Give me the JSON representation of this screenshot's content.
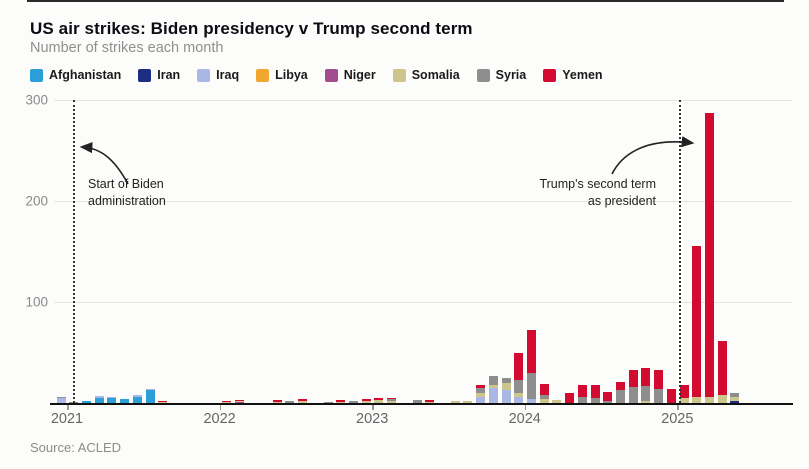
{
  "page": {
    "title": "US air strikes: Biden presidency v Trump second term",
    "subtitle": "Number of strikes each month",
    "source": "Source: ACLED"
  },
  "chart_data": {
    "type": "bar",
    "stacked": true,
    "title": "US air strikes: Biden presidency v Trump second term",
    "subtitle": "Number of strikes each month",
    "ylabel": "Number of strikes each month",
    "ylim": [
      0,
      300
    ],
    "yticks": [
      100,
      200,
      300
    ],
    "grid": "horizontal",
    "legend_position": "top",
    "x_year_ticks": [
      "2021",
      "2022",
      "2023",
      "2024",
      "2025"
    ],
    "months": [
      "2021-01",
      "2021-02",
      "2021-03",
      "2021-04",
      "2021-05",
      "2021-06",
      "2021-07",
      "2021-08",
      "2021-09",
      "2021-10",
      "2021-11",
      "2021-12",
      "2022-01",
      "2022-02",
      "2022-03",
      "2022-04",
      "2022-05",
      "2022-06",
      "2022-07",
      "2022-08",
      "2022-09",
      "2022-10",
      "2022-11",
      "2022-12",
      "2023-01",
      "2023-02",
      "2023-03",
      "2023-04",
      "2023-05",
      "2023-06",
      "2023-07",
      "2023-08",
      "2023-09",
      "2023-10",
      "2023-11",
      "2023-12",
      "2024-01",
      "2024-02",
      "2024-03",
      "2024-04",
      "2024-05",
      "2024-06",
      "2024-07",
      "2024-08",
      "2024-09",
      "2024-10",
      "2024-11",
      "2024-12",
      "2025-01",
      "2025-02",
      "2025-03",
      "2025-04",
      "2025-05",
      "2025-06"
    ],
    "series": [
      {
        "name": "Afghanistan",
        "color": "#2d9fd8",
        "values": [
          0,
          0,
          2,
          5,
          5,
          4,
          6,
          13,
          0,
          0,
          0,
          0,
          0,
          0,
          0,
          0,
          0,
          0,
          0,
          0,
          0,
          0,
          0,
          0,
          0,
          0,
          0,
          0,
          0,
          0,
          0,
          0,
          0,
          0,
          0,
          0,
          0,
          0,
          0,
          0,
          0,
          0,
          0,
          0,
          0,
          0,
          0,
          0,
          0,
          0,
          0,
          0,
          0,
          0
        ]
      },
      {
        "name": "Iran",
        "color": "#1c2e83",
        "values": [
          0,
          0,
          0,
          0,
          0,
          0,
          0,
          0,
          0,
          0,
          0,
          0,
          0,
          0,
          0,
          0,
          0,
          0,
          0,
          0,
          0,
          0,
          0,
          0,
          0,
          0,
          0,
          0,
          0,
          0,
          0,
          0,
          0,
          0,
          0,
          0,
          0,
          0,
          0,
          0,
          0,
          0,
          0,
          0,
          0,
          0,
          0,
          0,
          0,
          0,
          0,
          0,
          0,
          2
        ]
      },
      {
        "name": "Iraq",
        "color": "#aab7e4",
        "values": [
          5,
          0,
          0,
          2,
          1,
          0,
          2,
          1,
          0,
          0,
          0,
          0,
          0,
          0,
          0,
          0,
          0,
          0,
          0,
          0,
          0,
          0,
          0,
          0,
          0,
          0,
          0,
          0,
          0,
          0,
          0,
          0,
          0,
          6,
          15,
          13,
          6,
          4,
          0,
          0,
          0,
          0,
          0,
          0,
          0,
          0,
          0,
          0,
          0,
          0,
          0,
          0,
          0,
          0
        ]
      },
      {
        "name": "Libya",
        "color": "#efa72e",
        "values": [
          0,
          0,
          0,
          0,
          0,
          0,
          0,
          0,
          0,
          0,
          0,
          0,
          0,
          0,
          0,
          0,
          0,
          0,
          0,
          0,
          0,
          0,
          0,
          0,
          0,
          0,
          0,
          0,
          0,
          0,
          0,
          0,
          0,
          0,
          0,
          0,
          0,
          0,
          0,
          0,
          0,
          0,
          0,
          0,
          0,
          0,
          0,
          0,
          0,
          0,
          0,
          0,
          0,
          0
        ]
      },
      {
        "name": "Niger",
        "color": "#a14d8f",
        "values": [
          0,
          0,
          0,
          0,
          0,
          0,
          0,
          0,
          0,
          0,
          0,
          0,
          0,
          0,
          1,
          0,
          0,
          0,
          0,
          0,
          0,
          0,
          0,
          0,
          0,
          0,
          0,
          0,
          0,
          0,
          0,
          0,
          0,
          0,
          0,
          0,
          0,
          0,
          0,
          0,
          0,
          0,
          0,
          0,
          0,
          0,
          0,
          0,
          0,
          0,
          0,
          0,
          0,
          0
        ]
      },
      {
        "name": "Somalia",
        "color": "#cdc68c",
        "values": [
          0,
          0,
          0,
          0,
          0,
          0,
          0,
          0,
          1,
          0,
          0,
          0,
          0,
          1,
          1,
          0,
          0,
          1,
          0,
          2,
          0,
          0,
          1,
          0,
          2,
          3,
          2,
          0,
          0,
          1,
          0,
          2,
          2,
          4,
          3,
          7,
          4,
          0,
          4,
          3,
          0,
          0,
          0,
          0,
          0,
          0,
          2,
          0,
          0,
          5,
          6,
          6,
          8,
          4
        ]
      },
      {
        "name": "Syria",
        "color": "#8e8e8e",
        "values": [
          1,
          1,
          0,
          0,
          0,
          0,
          0,
          0,
          0,
          0,
          0,
          0,
          0,
          0,
          0,
          0,
          0,
          0,
          2,
          0,
          0,
          1,
          0,
          2,
          0,
          0,
          2,
          0,
          3,
          0,
          0,
          0,
          0,
          5,
          9,
          5,
          13,
          26,
          4,
          0,
          0,
          6,
          5,
          2,
          13,
          16,
          15,
          14,
          0,
          0,
          0,
          0,
          0,
          4
        ]
      },
      {
        "name": "Yemen",
        "color": "#d40b31",
        "values": [
          0,
          0,
          0,
          0,
          0,
          0,
          0,
          0,
          1,
          0,
          0,
          0,
          0,
          1,
          1,
          0,
          0,
          2,
          0,
          2,
          0,
          0,
          2,
          0,
          2,
          2,
          1,
          0,
          0,
          2,
          0,
          0,
          0,
          3,
          0,
          0,
          27,
          42,
          11,
          0,
          10,
          12,
          13,
          9,
          8,
          17,
          18,
          19,
          14,
          13,
          149,
          281,
          53,
          0
        ]
      }
    ],
    "events": [
      {
        "label_line1": "Start of Biden",
        "label_line2": "administration",
        "date_position": "2021-01"
      },
      {
        "label_line1": "Trump's second term",
        "label_line2": "as president",
        "date_position": "2025-01"
      }
    ]
  }
}
